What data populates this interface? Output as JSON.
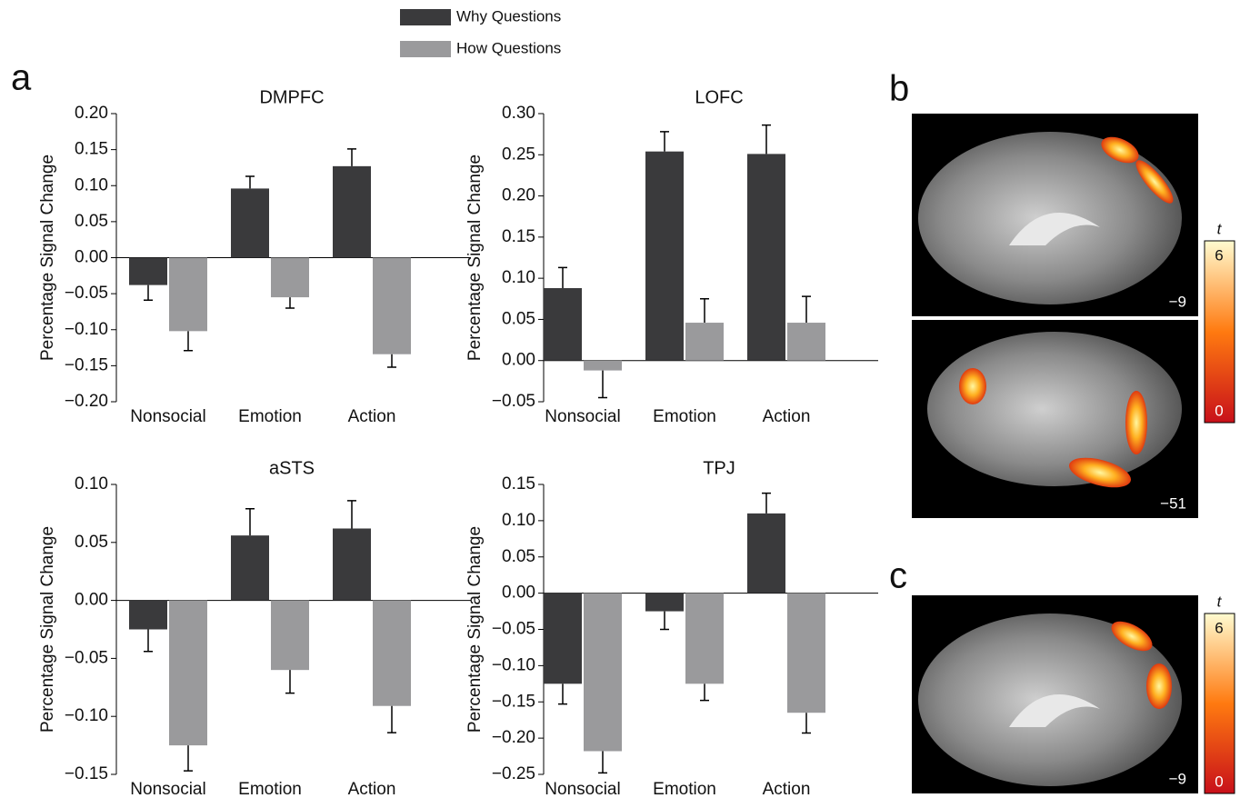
{
  "panel_labels": [
    "a",
    "b",
    "c"
  ],
  "brain": {
    "slices": [
      "−9",
      "−51",
      "−9"
    ],
    "colorbar": {
      "label": "t",
      "max": "6",
      "min": "0"
    }
  },
  "chart_data": [
    {
      "type": "bar",
      "title": "DMPFC",
      "ylabel": "Percentage Signal Change",
      "categories": [
        "Nonsocial",
        "Emotion",
        "Action"
      ],
      "series": [
        {
          "name": "Why Questions",
          "color": "#3a3a3c",
          "values": [
            -0.038,
            0.096,
            0.127
          ],
          "errors": [
            0.021,
            0.017,
            0.024
          ]
        },
        {
          "name": "How Questions",
          "color": "#9a9a9c",
          "values": [
            -0.102,
            -0.055,
            -0.134
          ],
          "errors": [
            0.027,
            0.015,
            0.018
          ]
        }
      ],
      "ylim": [
        -0.2,
        0.2
      ],
      "yticks": [
        {
          "value": -0.2,
          "label": "−0.20"
        },
        {
          "value": -0.15,
          "label": "−0.15"
        },
        {
          "value": -0.1,
          "label": "−0.10"
        },
        {
          "value": -0.05,
          "label": "−0.05"
        },
        {
          "value": 0,
          "label": "0.00"
        },
        {
          "value": 0.05,
          "label": "0.05"
        },
        {
          "value": 0.1,
          "label": "0.10"
        },
        {
          "value": 0.15,
          "label": "0.15"
        },
        {
          "value": 0.2,
          "label": "0.20"
        }
      ]
    },
    {
      "type": "bar",
      "title": "LOFC",
      "ylabel": "Percentage Signal Change",
      "categories": [
        "Nonsocial",
        "Emotion",
        "Action"
      ],
      "series": [
        {
          "name": "Why Questions",
          "color": "#3a3a3c",
          "values": [
            0.088,
            0.254,
            0.251
          ],
          "errors": [
            0.025,
            0.024,
            0.035
          ]
        },
        {
          "name": "How Questions",
          "color": "#9a9a9c",
          "values": [
            -0.012,
            0.046,
            0.046
          ],
          "errors": [
            0.033,
            0.029,
            0.032
          ]
        }
      ],
      "ylim": [
        -0.05,
        0.3
      ],
      "yticks": [
        {
          "value": -0.05,
          "label": "−0.05"
        },
        {
          "value": 0,
          "label": "0.00"
        },
        {
          "value": 0.05,
          "label": "0.05"
        },
        {
          "value": 0.1,
          "label": "0.10"
        },
        {
          "value": 0.15,
          "label": "0.15"
        },
        {
          "value": 0.2,
          "label": "0.20"
        },
        {
          "value": 0.25,
          "label": "0.25"
        },
        {
          "value": 0.3,
          "label": "0.30"
        }
      ]
    },
    {
      "type": "bar",
      "title": "aSTS",
      "ylabel": "Percentage Signal Change",
      "categories": [
        "Nonsocial",
        "Emotion",
        "Action"
      ],
      "series": [
        {
          "name": "Why Questions",
          "color": "#3a3a3c",
          "values": [
            -0.025,
            0.056,
            0.062
          ],
          "errors": [
            0.019,
            0.023,
            0.024
          ]
        },
        {
          "name": "How Questions",
          "color": "#9a9a9c",
          "values": [
            -0.125,
            -0.06,
            -0.091
          ],
          "errors": [
            0.022,
            0.02,
            0.023
          ]
        }
      ],
      "ylim": [
        -0.15,
        0.1
      ],
      "yticks": [
        {
          "value": -0.15,
          "label": "−0.15"
        },
        {
          "value": -0.1,
          "label": "−0.10"
        },
        {
          "value": -0.05,
          "label": "−0.05"
        },
        {
          "value": 0,
          "label": "0.00"
        },
        {
          "value": 0.05,
          "label": "0.05"
        },
        {
          "value": 0.1,
          "label": "0.10"
        }
      ]
    },
    {
      "type": "bar",
      "title": "TPJ",
      "ylabel": "Percentage Signal Change",
      "categories": [
        "Nonsocial",
        "Emotion",
        "Action"
      ],
      "series": [
        {
          "name": "Why Questions",
          "color": "#3a3a3c",
          "values": [
            -0.125,
            -0.025,
            0.11
          ],
          "errors": [
            0.028,
            0.025,
            0.028
          ]
        },
        {
          "name": "How Questions",
          "color": "#9a9a9c",
          "values": [
            -0.218,
            -0.125,
            -0.165
          ],
          "errors": [
            0.03,
            0.023,
            0.028
          ]
        }
      ],
      "ylim": [
        -0.25,
        0.15
      ],
      "yticks": [
        {
          "value": -0.25,
          "label": "−0.25"
        },
        {
          "value": -0.2,
          "label": "−0.20"
        },
        {
          "value": -0.15,
          "label": "−0.15"
        },
        {
          "value": -0.1,
          "label": "−0.10"
        },
        {
          "value": -0.05,
          "label": "−0.05"
        },
        {
          "value": 0,
          "label": "0.00"
        },
        {
          "value": 0.05,
          "label": "0.05"
        },
        {
          "value": 0.1,
          "label": "0.10"
        },
        {
          "value": 0.15,
          "label": "0.15"
        }
      ]
    }
  ]
}
